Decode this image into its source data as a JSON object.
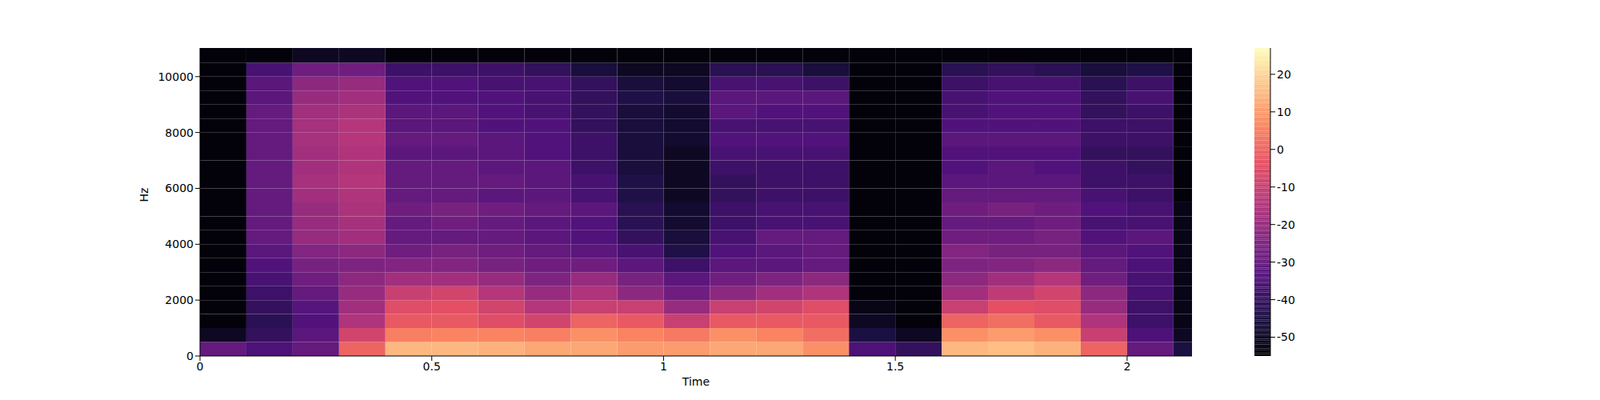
{
  "chart_data": {
    "type": "heatmap",
    "x_label": "Time",
    "y_label": "Hz",
    "xlim": [
      0,
      2.14
    ],
    "xticks": [
      0,
      0.5,
      1,
      1.5,
      2
    ],
    "ylim": [
      0,
      11025
    ],
    "yticks": [
      0,
      2000,
      4000,
      6000,
      8000,
      10000
    ],
    "x_edges": [
      0,
      0.1,
      0.2,
      0.3,
      0.4,
      0.5,
      0.6,
      0.7,
      0.8,
      0.9,
      1.0,
      1.1,
      1.2,
      1.3,
      1.4,
      1.5,
      1.6,
      1.7,
      1.8,
      1.9,
      2.0,
      2.1,
      2.14
    ],
    "y_edges": [
      0,
      500,
      1000,
      1500,
      2000,
      2500,
      3000,
      3500,
      4000,
      4500,
      5000,
      5500,
      6000,
      6500,
      7000,
      7500,
      8000,
      8500,
      9000,
      9500,
      10000,
      10500,
      11025
    ],
    "cells": [
      [
        -30,
        -35,
        -30,
        0,
        15,
        15,
        14,
        12,
        12,
        10,
        10,
        12,
        12,
        8,
        -35,
        -40,
        15,
        16,
        14,
        0,
        -30,
        -45
      ],
      [
        -50,
        -40,
        -32,
        -8,
        5,
        6,
        6,
        5,
        8,
        6,
        4,
        8,
        6,
        2,
        -45,
        -50,
        8,
        10,
        8,
        -10,
        -35,
        -50
      ],
      [
        -54,
        -42,
        -34,
        -15,
        -2,
        -2,
        -5,
        -8,
        0,
        -2,
        -10,
        -2,
        -2,
        -2,
        -50,
        -54,
        0,
        2,
        -2,
        -15,
        -38,
        -52
      ],
      [
        -54,
        -40,
        -33,
        -18,
        -5,
        -4,
        -8,
        -14,
        -10,
        -10,
        -20,
        -10,
        -8,
        -5,
        -52,
        -54,
        -10,
        -4,
        -5,
        -20,
        -38,
        -52
      ],
      [
        -54,
        -38,
        -30,
        -20,
        -10,
        -8,
        -14,
        -20,
        -15,
        -22,
        -28,
        -22,
        -18,
        -15,
        -54,
        -54,
        -18,
        -12,
        -8,
        -22,
        -36,
        -52
      ],
      [
        -54,
        -36,
        -28,
        -22,
        -18,
        -18,
        -20,
        -25,
        -20,
        -26,
        -32,
        -28,
        -25,
        -22,
        -54,
        -54,
        -22,
        -18,
        -14,
        -28,
        -36,
        -52
      ],
      [
        -54,
        -34,
        -26,
        -25,
        -24,
        -24,
        -26,
        -28,
        -28,
        -32,
        -38,
        -32,
        -32,
        -30,
        -54,
        -54,
        -25,
        -24,
        -22,
        -30,
        -35,
        -52
      ],
      [
        -54,
        -32,
        -24,
        -22,
        -28,
        -26,
        -28,
        -30,
        -32,
        -36,
        -44,
        -34,
        -32,
        -30,
        -54,
        -54,
        -24,
        -26,
        -26,
        -32,
        -34,
        -52
      ],
      [
        -54,
        -30,
        -20,
        -18,
        -30,
        -30,
        -30,
        -32,
        -34,
        -40,
        -46,
        -36,
        -30,
        -30,
        -54,
        -54,
        -28,
        -28,
        -26,
        -34,
        -32,
        -52
      ],
      [
        -54,
        -30,
        -20,
        -17,
        -30,
        -28,
        -30,
        -32,
        -34,
        -42,
        -48,
        -38,
        -36,
        -36,
        -54,
        -54,
        -30,
        -30,
        -28,
        -36,
        -36,
        -52
      ],
      [
        -54,
        -30,
        -20,
        -16,
        -28,
        -26,
        -28,
        -30,
        -32,
        -42,
        -48,
        -38,
        -36,
        -36,
        -54,
        -54,
        -28,
        -26,
        -28,
        -34,
        -36,
        -52
      ],
      [
        -54,
        -30,
        -18,
        -15,
        -30,
        -30,
        -32,
        -32,
        -36,
        -44,
        -50,
        -40,
        -38,
        -38,
        -54,
        -54,
        -30,
        -30,
        -30,
        -36,
        -38,
        -54
      ],
      [
        -54,
        -30,
        -17,
        -14,
        -30,
        -30,
        -30,
        -32,
        -36,
        -44,
        -50,
        -40,
        -38,
        -38,
        -54,
        -54,
        -32,
        -32,
        -32,
        -38,
        -38,
        -54
      ],
      [
        -54,
        -30,
        -18,
        -15,
        -30,
        -30,
        -32,
        -32,
        -38,
        -46,
        -50,
        -38,
        -38,
        -38,
        -54,
        -54,
        -34,
        -32,
        -34,
        -38,
        -40,
        -54
      ],
      [
        -54,
        -30,
        -18,
        -15,
        -32,
        -32,
        -32,
        -34,
        -38,
        -46,
        -50,
        -36,
        -36,
        -36,
        -54,
        -54,
        -34,
        -34,
        -34,
        -40,
        -40,
        -54
      ],
      [
        -54,
        -30,
        -17,
        -14,
        -30,
        -30,
        -32,
        -34,
        -38,
        -46,
        -48,
        -34,
        -34,
        -34,
        -54,
        -54,
        -32,
        -32,
        -32,
        -38,
        -38,
        -54
      ],
      [
        -54,
        -30,
        -17,
        -14,
        -32,
        -32,
        -34,
        -34,
        -40,
        -46,
        -48,
        -36,
        -36,
        -36,
        -54,
        -54,
        -34,
        -34,
        -34,
        -38,
        -38,
        -54
      ],
      [
        -54,
        -30,
        -18,
        -16,
        -32,
        -32,
        -34,
        -36,
        -40,
        -46,
        -48,
        -32,
        -34,
        -34,
        -54,
        -54,
        -36,
        -34,
        -34,
        -40,
        -38,
        -54
      ],
      [
        -54,
        -32,
        -20,
        -18,
        -34,
        -34,
        -34,
        -36,
        -40,
        -44,
        -46,
        -32,
        -32,
        -32,
        -54,
        -54,
        -36,
        -34,
        -34,
        -40,
        -36,
        -54
      ],
      [
        -54,
        -32,
        -22,
        -20,
        -34,
        -34,
        -36,
        -36,
        -40,
        -46,
        -48,
        -36,
        -36,
        -38,
        -54,
        -54,
        -38,
        -36,
        -36,
        -42,
        -38,
        -54
      ],
      [
        -54,
        -36,
        -28,
        -28,
        -38,
        -38,
        -38,
        -40,
        -46,
        -50,
        -50,
        -42,
        -42,
        -46,
        -54,
        -54,
        -42,
        -40,
        -42,
        -46,
        -44,
        -54
      ],
      [
        -54,
        -54,
        -50,
        -50,
        -54,
        -54,
        -54,
        -54,
        -54,
        -54,
        -54,
        -54,
        -54,
        -54,
        -54,
        -54,
        -54,
        -54,
        -54,
        -54,
        -54,
        -54
      ]
    ],
    "colorbar": {
      "range": [
        -55,
        27
      ],
      "ticks": [
        -50,
        -40,
        -30,
        -20,
        -10,
        0,
        10,
        20
      ]
    }
  }
}
